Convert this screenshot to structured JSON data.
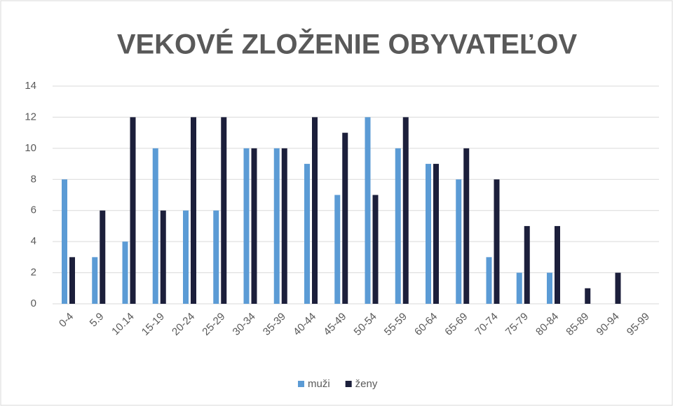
{
  "chart_data": {
    "type": "bar",
    "title": "VEKOVÉ ZLOŽENIE OBYVATEĽOV",
    "categories": [
      "0-4",
      "5.9",
      "10.14",
      "15-19",
      "20-24",
      "25-29",
      "30-34",
      "35-39",
      "40-44",
      "45-49",
      "50-54",
      "55-59",
      "60-64",
      "65-69",
      "70-74",
      "75-79",
      "80-84",
      "85-89",
      "90-94",
      "95-99"
    ],
    "series": [
      {
        "name": "muži",
        "color": "#5b9bd5",
        "values": [
          8,
          3,
          4,
          10,
          6,
          6,
          10,
          10,
          9,
          7,
          12,
          10,
          9,
          8,
          3,
          2,
          2,
          0,
          0,
          0
        ]
      },
      {
        "name": "ženy",
        "color": "#1c1f3b",
        "values": [
          3,
          6,
          12,
          6,
          12,
          12,
          10,
          10,
          12,
          11,
          7,
          12,
          9,
          10,
          8,
          5,
          5,
          1,
          2,
          0
        ]
      }
    ],
    "ylim": [
      0,
      14
    ],
    "yticks": [
      0,
      2,
      4,
      6,
      8,
      10,
      12,
      14
    ],
    "grid": true,
    "legend": "bottom"
  }
}
